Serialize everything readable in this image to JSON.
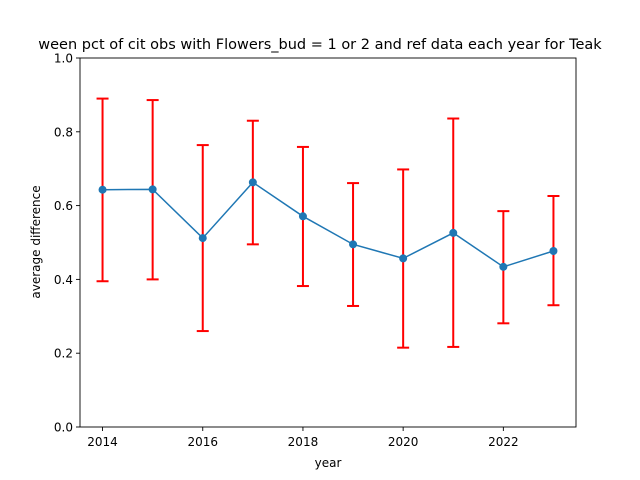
{
  "chart_data": {
    "type": "line",
    "title": "ween pct of cit obs with Flowers_bud = 1 or 2 and ref data each year for Teak",
    "xlabel": "year",
    "ylabel": "average difference",
    "xlim": [
      2013.55,
      2023.45
    ],
    "ylim": [
      0.0,
      1.0
    ],
    "xticks": [
      2014,
      2016,
      2018,
      2020,
      2022
    ],
    "yticks": [
      0.0,
      0.2,
      0.4,
      0.6,
      0.8,
      1.0
    ],
    "xtick_labels": [
      "2014",
      "2016",
      "2018",
      "2020",
      "2022"
    ],
    "ytick_labels": [
      "0.0",
      "0.2",
      "0.4",
      "0.6",
      "0.8",
      "1.0"
    ],
    "grid": false,
    "series": [
      {
        "x": [
          2014,
          2015,
          2016,
          2017,
          2018,
          2019,
          2020,
          2021,
          2022,
          2023
        ],
        "y": [
          0.643,
          0.644,
          0.512,
          0.663,
          0.571,
          0.495,
          0.457,
          0.526,
          0.434,
          0.477
        ],
        "yerr_low": [
          0.395,
          0.4,
          0.26,
          0.495,
          0.382,
          0.328,
          0.215,
          0.217,
          0.281,
          0.33
        ],
        "yerr_high": [
          0.89,
          0.886,
          0.764,
          0.83,
          0.759,
          0.661,
          0.698,
          0.836,
          0.585,
          0.626
        ],
        "line_color": "#1f77b4",
        "marker_color": "#1f77b4",
        "errorbar_color": "#ff0000"
      }
    ]
  }
}
